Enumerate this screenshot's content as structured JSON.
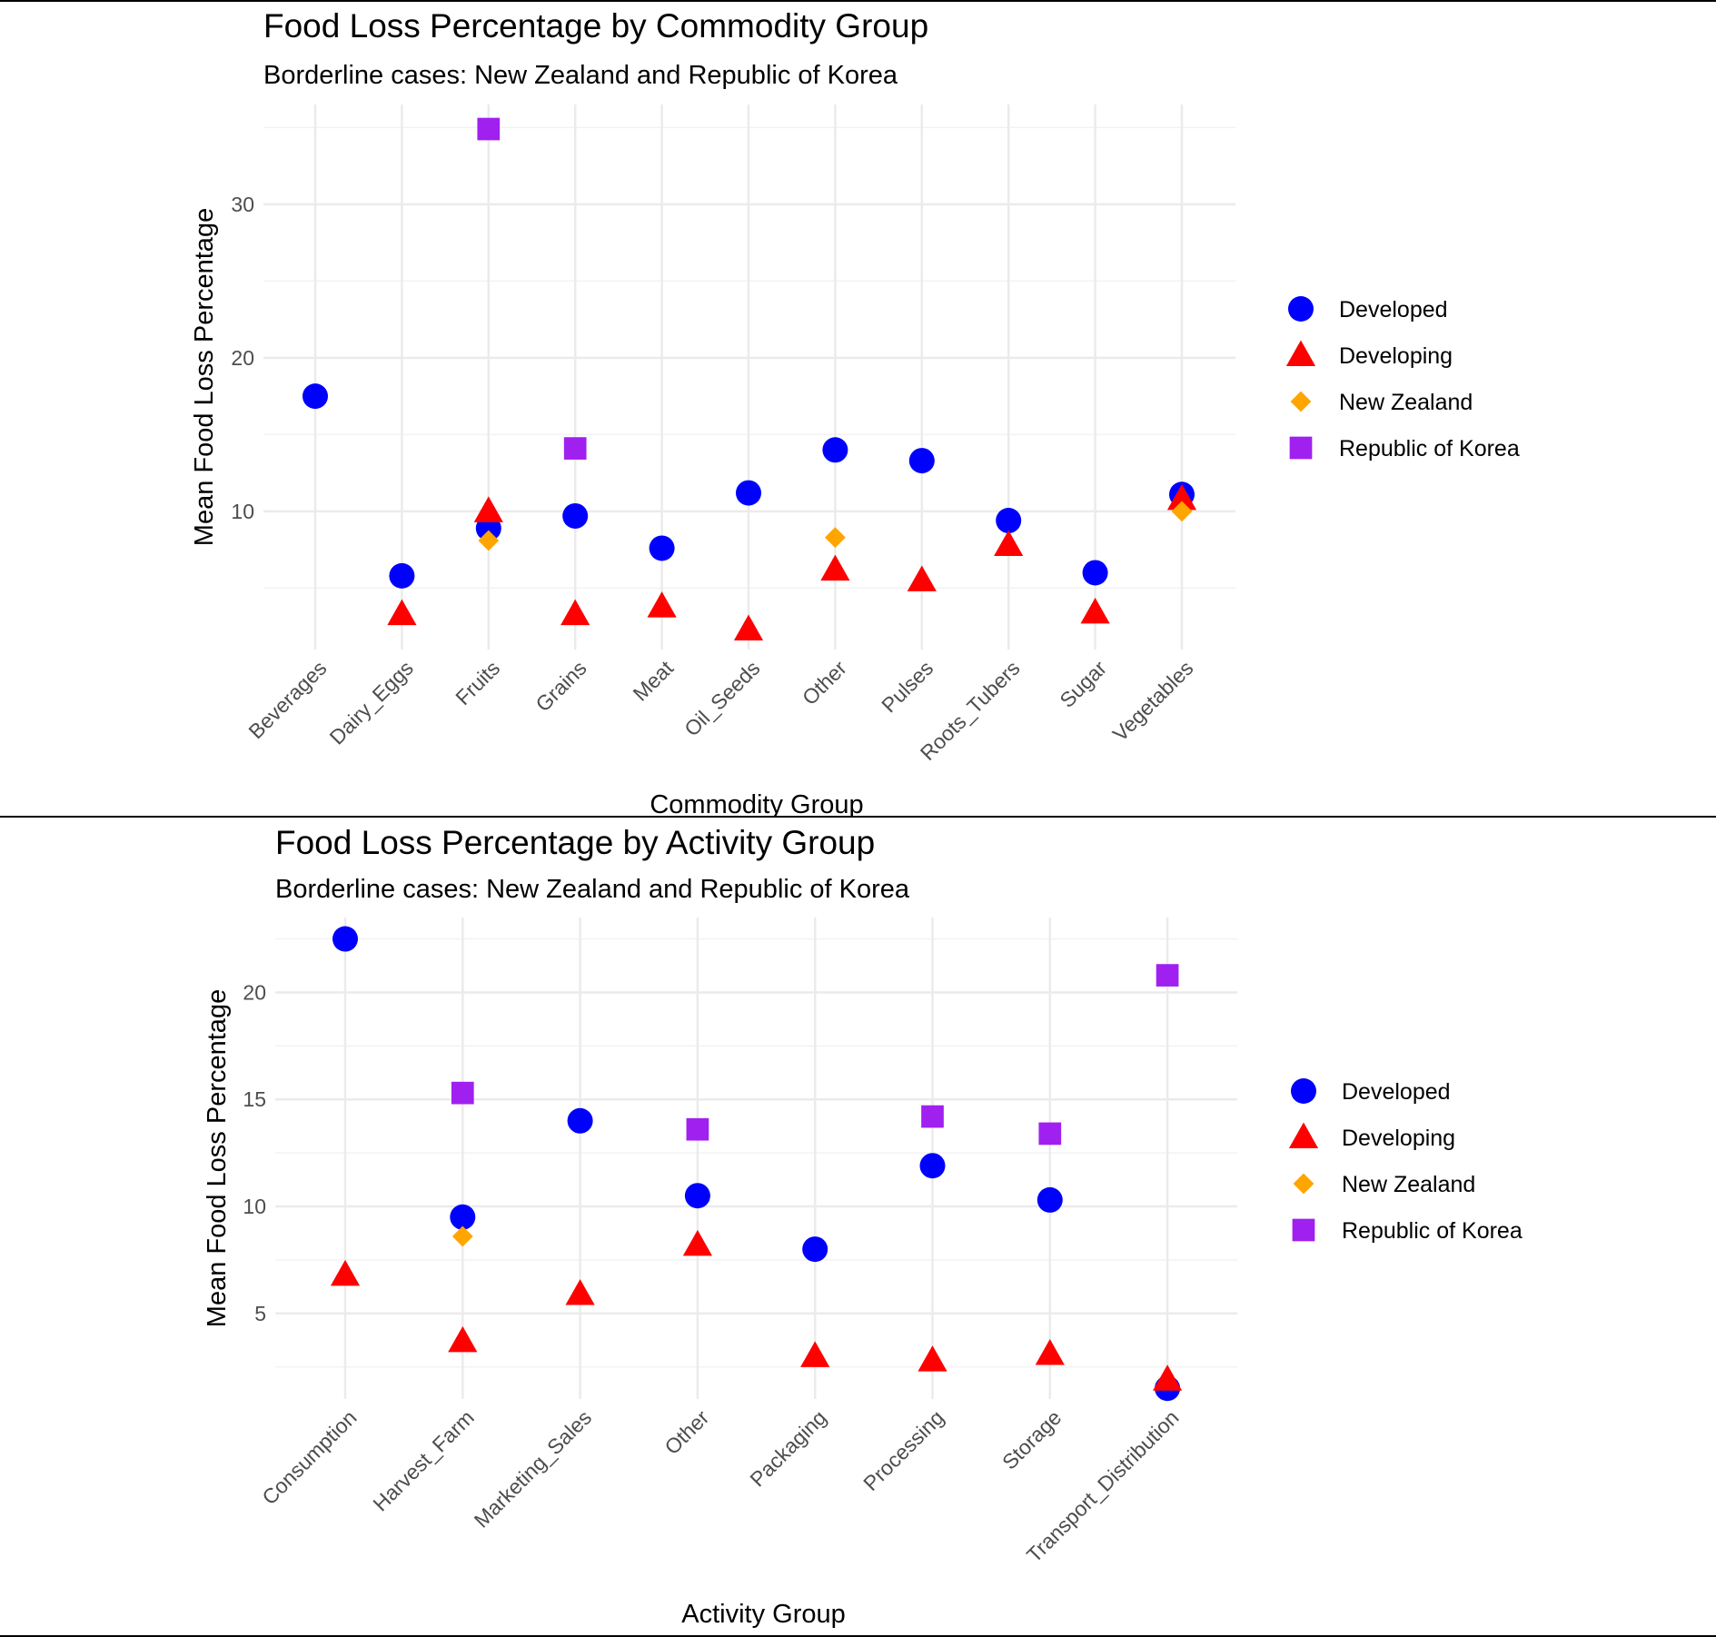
{
  "marker_styles": {
    "Developed": {
      "shape": "circle",
      "color": "#0000ff"
    },
    "Developing": {
      "shape": "triangle",
      "color": "#ff0000"
    },
    "New Zealand": {
      "shape": "diamond",
      "color": "#ffa500"
    },
    "Republic of Korea": {
      "shape": "square",
      "color": "#a020f0"
    }
  },
  "chart_data": [
    {
      "type": "scatter",
      "title": "Food Loss Percentage by Commodity Group",
      "subtitle": "Borderline cases: New Zealand and Republic of Korea",
      "xlabel": "Commodity Group",
      "ylabel": "Mean Food Loss Percentage",
      "categories": [
        "Beverages",
        "Dairy_Eggs",
        "Fruits",
        "Grains",
        "Meat",
        "Oil_Seeds",
        "Other",
        "Pulses",
        "Roots_Tubers",
        "Sugar",
        "Vegetables"
      ],
      "yticks": [
        10,
        20,
        30
      ],
      "ylim": [
        1.0,
        36.5
      ],
      "grid": true,
      "legend": "right",
      "series": [
        {
          "name": "Developed",
          "values": [
            17.5,
            5.8,
            8.9,
            9.7,
            7.6,
            11.2,
            14.0,
            13.3,
            9.4,
            6.0,
            11.1
          ]
        },
        {
          "name": "Developing",
          "values": [
            null,
            3.3,
            10.0,
            3.3,
            3.8,
            2.3,
            6.2,
            5.5,
            7.8,
            3.4,
            10.8
          ]
        },
        {
          "name": "New Zealand",
          "values": [
            null,
            null,
            8.1,
            null,
            null,
            null,
            8.3,
            null,
            null,
            null,
            10.0
          ]
        },
        {
          "name": "Republic of Korea",
          "values": [
            null,
            null,
            34.9,
            14.1,
            null,
            null,
            null,
            null,
            null,
            null,
            null
          ]
        }
      ]
    },
    {
      "type": "scatter",
      "title": "Food Loss Percentage by Activity Group",
      "subtitle": "Borderline cases: New Zealand and Republic of Korea",
      "xlabel": "Activity Group",
      "ylabel": "Mean Food Loss Percentage",
      "categories": [
        "Consumption",
        "Harvest_Farm",
        "Marketing_Sales",
        "Other",
        "Packaging",
        "Processing",
        "Storage",
        "Transport_Distribution"
      ],
      "yticks": [
        5,
        10,
        15,
        20
      ],
      "ylim": [
        1.0,
        23.5
      ],
      "grid": true,
      "legend": "right",
      "series": [
        {
          "name": "Developed",
          "values": [
            22.5,
            9.5,
            14.0,
            10.5,
            8.0,
            11.9,
            10.3,
            1.5
          ]
        },
        {
          "name": "Developing",
          "values": [
            6.8,
            3.7,
            5.9,
            8.2,
            3.0,
            2.8,
            3.1,
            1.9
          ]
        },
        {
          "name": "New Zealand",
          "values": [
            null,
            8.6,
            null,
            null,
            null,
            null,
            null,
            null
          ]
        },
        {
          "name": "Republic of Korea",
          "values": [
            null,
            15.3,
            null,
            13.6,
            null,
            14.2,
            13.4,
            20.8
          ]
        }
      ]
    }
  ]
}
